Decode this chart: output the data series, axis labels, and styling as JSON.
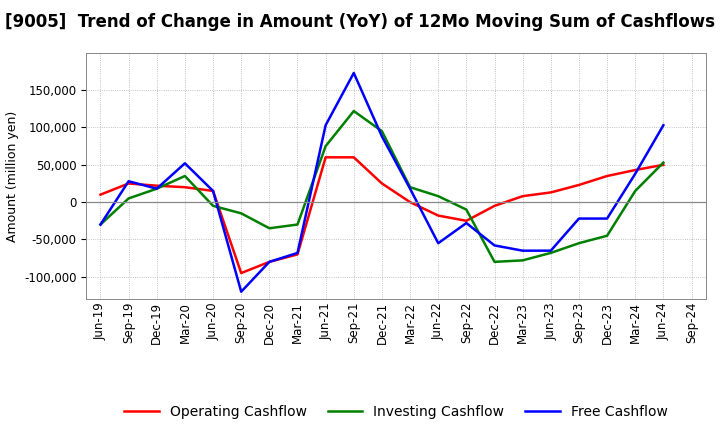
{
  "title": "[9005]  Trend of Change in Amount (YoY) of 12Mo Moving Sum of Cashflows",
  "ylabel": "Amount (million yen)",
  "x_labels": [
    "Jun-19",
    "Sep-19",
    "Dec-19",
    "Mar-20",
    "Jun-20",
    "Sep-20",
    "Dec-20",
    "Mar-21",
    "Jun-21",
    "Sep-21",
    "Dec-21",
    "Mar-22",
    "Jun-22",
    "Sep-22",
    "Dec-22",
    "Mar-23",
    "Jun-23",
    "Sep-23",
    "Dec-23",
    "Mar-24",
    "Jun-24",
    "Sep-24"
  ],
  "operating_cashflow": [
    10000,
    25000,
    22000,
    20000,
    15000,
    -95000,
    -80000,
    -70000,
    60000,
    60000,
    25000,
    0,
    -18000,
    -25000,
    -5000,
    8000,
    13000,
    23000,
    35000,
    43000,
    50000,
    null
  ],
  "investing_cashflow": [
    -30000,
    5000,
    18000,
    35000,
    -5000,
    -15000,
    -35000,
    -30000,
    75000,
    122000,
    95000,
    20000,
    8000,
    -10000,
    -80000,
    -78000,
    -68000,
    -55000,
    -45000,
    15000,
    53000,
    null
  ],
  "free_cashflow": [
    -30000,
    28000,
    18000,
    52000,
    15000,
    -120000,
    -80000,
    -68000,
    103000,
    173000,
    88000,
    18000,
    -55000,
    -28000,
    -58000,
    -65000,
    -65000,
    -22000,
    -22000,
    38000,
    103000,
    null
  ],
  "operating_color": "#ff0000",
  "investing_color": "#008000",
  "free_color": "#0000ff",
  "ylim": [
    -130000,
    200000
  ],
  "yticks": [
    -100000,
    -50000,
    0,
    50000,
    100000,
    150000
  ],
  "background_color": "#ffffff",
  "grid_color": "#b0b0b0",
  "title_fontsize": 12,
  "legend_fontsize": 10,
  "axis_fontsize": 8.5
}
